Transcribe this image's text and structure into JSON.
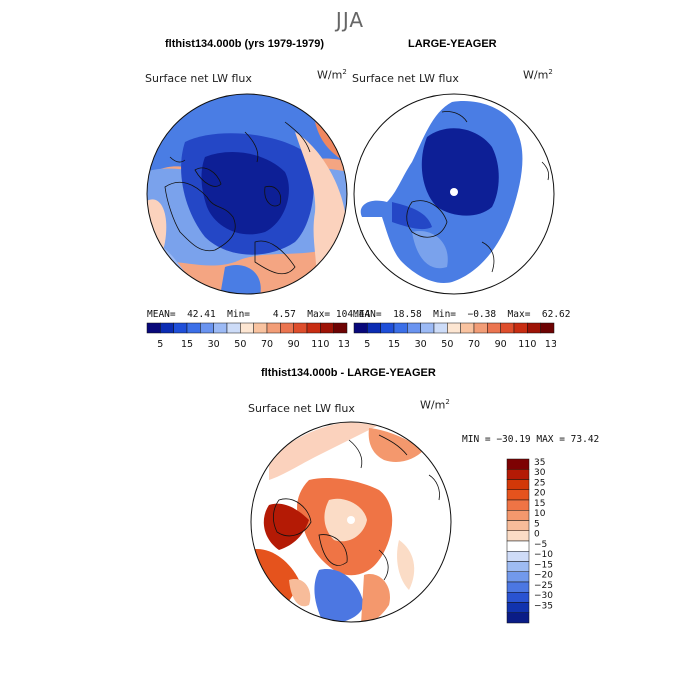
{
  "season": "JJA",
  "panels": {
    "left": {
      "title": "flthist134.000b (yrs 1979-1979)",
      "variable": "Surface net LW flux",
      "units_base": "W/m",
      "units_exp": "2",
      "stats": {
        "mean_label": "MEAN=",
        "mean": "42.41",
        "min_label": "Min=",
        "min": "4.57",
        "max_label": "Max=",
        "max": "104.44"
      }
    },
    "right": {
      "title": "LARGE-YEAGER",
      "variable": "Surface net LW flux",
      "units_base": "W/m",
      "units_exp": "2",
      "stats": {
        "mean_label": "MEAN=",
        "mean": "18.58",
        "min_label": "Min=",
        "min": "−0.38",
        "max_label": "Max=",
        "max": "62.62"
      }
    },
    "diff": {
      "title": "flthist134.000b - LARGE-YEAGER",
      "variable": "Surface net LW flux",
      "units_base": "W/m",
      "units_exp": "2",
      "minmax": "MIN = −30.19  MAX =  73.42"
    }
  },
  "colorbar_top": {
    "ticks": [
      "5",
      "15",
      "30",
      "50",
      "70",
      "90",
      "110",
      "130"
    ],
    "colors": [
      "#08087a",
      "#0b2cb3",
      "#1f4fd9",
      "#3b6fe8",
      "#6a94f0",
      "#9cbaf5",
      "#cddcf8",
      "#fde6d2",
      "#f9c3a0",
      "#f29d77",
      "#eb7550",
      "#de4e2c",
      "#c82d12",
      "#9e1306",
      "#6d0303"
    ]
  },
  "colorbar_diff": {
    "ticks": [
      "35",
      "30",
      "25",
      "20",
      "15",
      "10",
      "5",
      "0",
      "−5",
      "−10",
      "−15",
      "−20",
      "−25",
      "−30",
      "−35"
    ],
    "colors": [
      "#7d0203",
      "#b41a05",
      "#d23808",
      "#e5531d",
      "#ef7445",
      "#f4986d",
      "#f7bc9a",
      "#fbdcc6",
      "#ffffff",
      "#cfdcf8",
      "#9ebbf2",
      "#7299eb",
      "#4c77e2",
      "#2a53d1",
      "#1133ae",
      "#0a1c86"
    ]
  }
}
